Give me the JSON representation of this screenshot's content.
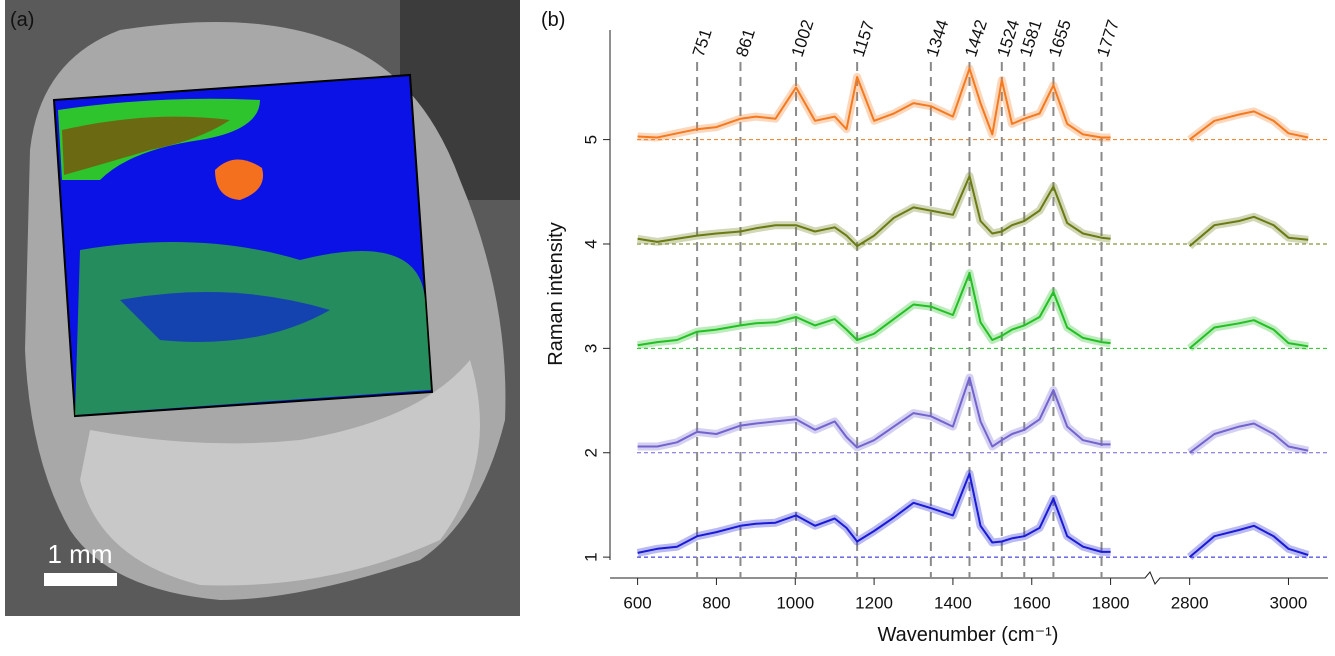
{
  "panel_a": {
    "label": "(a)",
    "scale_bar": "1 mm"
  },
  "chart_data": {
    "type": "line",
    "label": "(b)",
    "x_label": "Wavenumber  (cm⁻¹)",
    "y_label": "Raman intensity",
    "xlim_segments": [
      [
        530,
        1900
      ],
      [
        2740,
        3080
      ]
    ],
    "xticks": [
      600,
      800,
      1000,
      1200,
      1400,
      1600,
      1800,
      2800,
      3000
    ],
    "ylim": [
      0.8,
      6.05
    ],
    "yticks": [
      1,
      2,
      3,
      4,
      5
    ],
    "peak_lines": [
      751,
      861,
      1002,
      1157,
      1344,
      1442,
      1524,
      1581,
      1655,
      1777
    ],
    "x": [
      600,
      650,
      700,
      751,
      800,
      861,
      900,
      950,
      1002,
      1050,
      1100,
      1130,
      1157,
      1200,
      1250,
      1300,
      1344,
      1400,
      1442,
      1470,
      1500,
      1524,
      1550,
      1581,
      1620,
      1655,
      1690,
      1730,
      1777,
      1800,
      null,
      2800,
      2850,
      2900,
      2930,
      2970,
      3000,
      3040
    ],
    "series": [
      {
        "color": "#1a1ad8",
        "values": [
          1.04,
          1.08,
          1.1,
          1.2,
          1.24,
          1.3,
          1.32,
          1.33,
          1.4,
          1.3,
          1.37,
          1.28,
          1.15,
          1.25,
          1.38,
          1.52,
          1.47,
          1.4,
          1.8,
          1.3,
          1.14,
          1.15,
          1.18,
          1.2,
          1.28,
          1.56,
          1.2,
          1.1,
          1.05,
          1.05,
          null,
          1.0,
          1.2,
          1.26,
          1.3,
          1.2,
          1.08,
          1.02
        ]
      },
      {
        "color": "#7263cf",
        "values": [
          2.06,
          2.06,
          2.1,
          2.2,
          2.18,
          2.26,
          2.28,
          2.3,
          2.32,
          2.22,
          2.3,
          2.15,
          2.05,
          2.12,
          2.25,
          2.38,
          2.35,
          2.25,
          2.72,
          2.3,
          2.06,
          2.12,
          2.18,
          2.22,
          2.32,
          2.6,
          2.25,
          2.12,
          2.08,
          2.08,
          null,
          2.0,
          2.18,
          2.25,
          2.28,
          2.18,
          2.06,
          2.02
        ]
      },
      {
        "color": "#22c022",
        "values": [
          3.03,
          3.06,
          3.08,
          3.16,
          3.18,
          3.22,
          3.24,
          3.25,
          3.3,
          3.22,
          3.28,
          3.18,
          3.08,
          3.14,
          3.28,
          3.42,
          3.4,
          3.32,
          3.72,
          3.25,
          3.08,
          3.12,
          3.18,
          3.22,
          3.3,
          3.54,
          3.2,
          3.1,
          3.06,
          3.05,
          null,
          3.0,
          3.2,
          3.24,
          3.27,
          3.18,
          3.05,
          3.02
        ]
      },
      {
        "color": "#6b7a12",
        "values": [
          4.05,
          4.02,
          4.05,
          4.08,
          4.1,
          4.12,
          4.15,
          4.18,
          4.18,
          4.12,
          4.16,
          4.08,
          3.98,
          4.08,
          4.25,
          4.35,
          4.32,
          4.28,
          4.65,
          4.22,
          4.1,
          4.12,
          4.18,
          4.22,
          4.32,
          4.55,
          4.2,
          4.1,
          4.06,
          4.05,
          null,
          3.98,
          4.18,
          4.22,
          4.26,
          4.18,
          4.06,
          4.04
        ]
      },
      {
        "color": "#f47a20",
        "values": [
          5.03,
          5.02,
          5.06,
          5.1,
          5.12,
          5.2,
          5.22,
          5.2,
          5.5,
          5.18,
          5.22,
          5.1,
          5.6,
          5.18,
          5.25,
          5.35,
          5.32,
          5.22,
          5.68,
          5.35,
          5.05,
          5.57,
          5.15,
          5.2,
          5.25,
          5.52,
          5.15,
          5.05,
          5.02,
          5.02,
          null,
          5.0,
          5.18,
          5.24,
          5.27,
          5.18,
          5.06,
          5.02
        ]
      }
    ]
  }
}
